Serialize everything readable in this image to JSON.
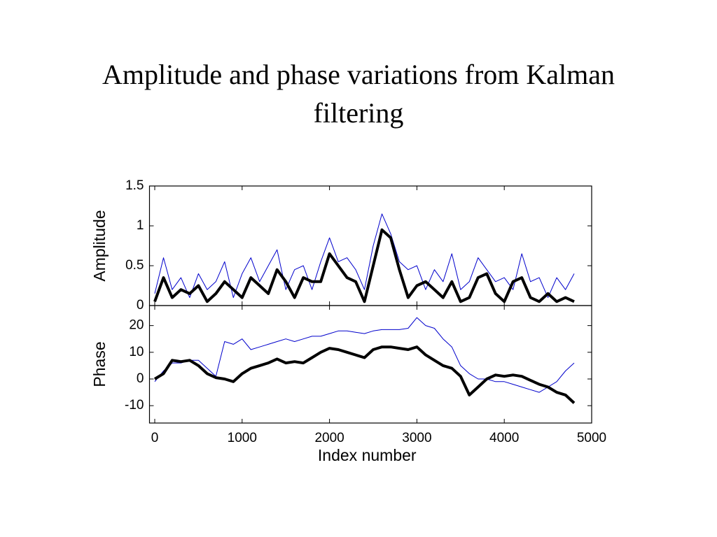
{
  "title": "Amplitude and phase variations from Kalman filtering",
  "chart_data": [
    {
      "type": "line",
      "ylabel": "Amplitude",
      "xlim": [
        -60,
        5000
      ],
      "ylim": [
        0,
        1.5
      ],
      "xticks": [
        0,
        1000,
        2000,
        3000,
        4000,
        5000
      ],
      "yticks": [
        0,
        0.5,
        1,
        1.5
      ],
      "x": [
        0,
        100,
        200,
        300,
        400,
        500,
        600,
        700,
        800,
        900,
        1000,
        1100,
        1200,
        1300,
        1400,
        1500,
        1600,
        1700,
        1800,
        1900,
        2000,
        2100,
        2200,
        2300,
        2400,
        2500,
        2600,
        2700,
        2800,
        2900,
        3000,
        3100,
        3200,
        3300,
        3400,
        3500,
        3600,
        3700,
        3800,
        3900,
        4000,
        4100,
        4200,
        4300,
        4400,
        4500,
        4600,
        4700,
        4800
      ],
      "series": [
        {
          "color": "#0000cc",
          "width": 1,
          "values": [
            0.15,
            0.6,
            0.2,
            0.35,
            0.1,
            0.4,
            0.2,
            0.3,
            0.55,
            0.1,
            0.4,
            0.6,
            0.3,
            0.5,
            0.7,
            0.2,
            0.45,
            0.5,
            0.2,
            0.55,
            0.85,
            0.55,
            0.6,
            0.45,
            0.2,
            0.75,
            1.15,
            0.9,
            0.55,
            0.45,
            0.5,
            0.2,
            0.45,
            0.3,
            0.65,
            0.2,
            0.3,
            0.6,
            0.45,
            0.3,
            0.35,
            0.2,
            0.65,
            0.3,
            0.35,
            0.1,
            0.35,
            0.2,
            0.4
          ]
        },
        {
          "color": "#000000",
          "width": 4,
          "values": [
            0.05,
            0.35,
            0.1,
            0.2,
            0.15,
            0.25,
            0.05,
            0.15,
            0.3,
            0.2,
            0.1,
            0.35,
            0.25,
            0.15,
            0.45,
            0.3,
            0.1,
            0.35,
            0.3,
            0.3,
            0.65,
            0.5,
            0.35,
            0.3,
            0.05,
            0.5,
            0.95,
            0.85,
            0.45,
            0.1,
            0.25,
            0.3,
            0.2,
            0.1,
            0.3,
            0.05,
            0.1,
            0.35,
            0.4,
            0.15,
            0.05,
            0.3,
            0.35,
            0.1,
            0.05,
            0.15,
            0.05,
            0.1,
            0.05
          ]
        }
      ]
    },
    {
      "type": "line",
      "ylabel": "Phase",
      "xlabel": "Index number",
      "xlim": [
        -60,
        5000
      ],
      "ylim": [
        -16.5,
        27.5
      ],
      "xticks": [
        0,
        1000,
        2000,
        3000,
        4000,
        5000
      ],
      "yticks": [
        -10,
        0,
        10,
        20
      ],
      "x": [
        0,
        100,
        200,
        300,
        400,
        500,
        600,
        700,
        800,
        900,
        1000,
        1100,
        1200,
        1300,
        1400,
        1500,
        1600,
        1700,
        1800,
        1900,
        2000,
        2100,
        2200,
        2300,
        2400,
        2500,
        2600,
        2700,
        2800,
        2900,
        3000,
        3100,
        3200,
        3300,
        3400,
        3500,
        3600,
        3700,
        3800,
        3900,
        4000,
        4100,
        4200,
        4300,
        4400,
        4500,
        4600,
        4700,
        4800
      ],
      "series": [
        {
          "color": "#0000cc",
          "width": 1,
          "values": [
            -1,
            3,
            6,
            6,
            7,
            7,
            4,
            1,
            14,
            13,
            15,
            11,
            12,
            13,
            14,
            15,
            14,
            15,
            16,
            16,
            17,
            18,
            18,
            17.5,
            17,
            18,
            18.5,
            18.5,
            18.5,
            19,
            23,
            20,
            19,
            15,
            12,
            5,
            2,
            0,
            0,
            -1,
            -1,
            -2,
            -3,
            -4,
            -5,
            -3,
            -1,
            3,
            6
          ]
        },
        {
          "color": "#000000",
          "width": 4,
          "values": [
            0,
            2,
            7,
            6.5,
            7,
            5,
            2,
            0.5,
            0,
            -1,
            2,
            4,
            5,
            6,
            7.5,
            6,
            6.5,
            6,
            8,
            10,
            11.5,
            11,
            10,
            9,
            8,
            11,
            12,
            12,
            11.5,
            11,
            12,
            9,
            7,
            5,
            4,
            1,
            -6,
            -3,
            0,
            1.5,
            1,
            1.5,
            1,
            -0.5,
            -2,
            -3,
            -5,
            -6,
            -9
          ]
        }
      ]
    }
  ]
}
